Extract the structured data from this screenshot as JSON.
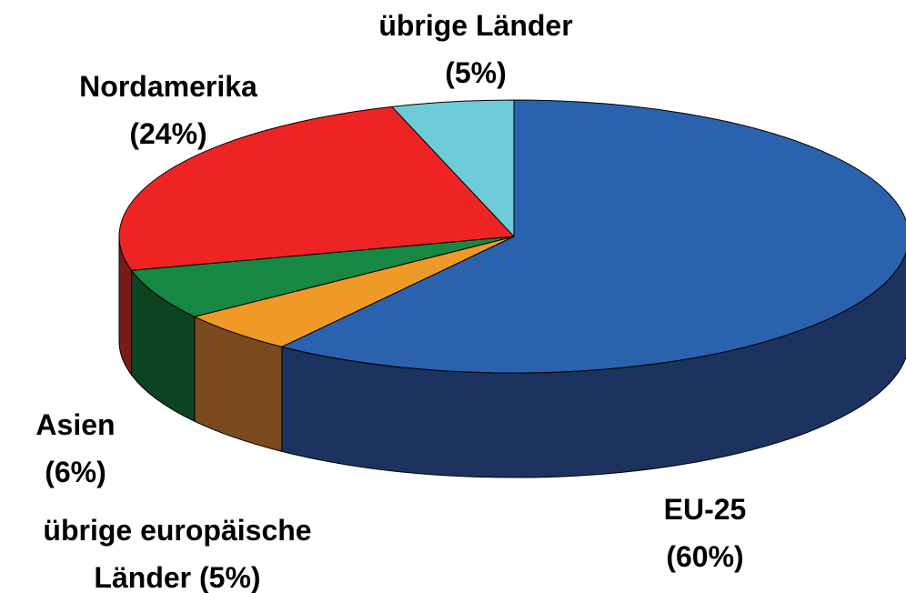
{
  "chart_data": {
    "type": "pie",
    "categories": [
      "EU-25",
      "übrige europäische Länder",
      "Asien",
      "Nordamerika",
      "übrige Länder"
    ],
    "values": [
      60,
      5,
      6,
      24,
      5
    ],
    "value_labels": [
      "(60%)",
      "(5%)",
      "(6%)",
      "(24%)",
      "(5%)"
    ],
    "colors": [
      "#2a62ae",
      "#ef9a26",
      "#178843",
      "#ee2424",
      "#6ecbd8"
    ],
    "side_colors": [
      "#1c335f",
      "#7a4a1e",
      "#0c4320",
      "#7a1a1a",
      "#3f8f9a"
    ]
  }
}
